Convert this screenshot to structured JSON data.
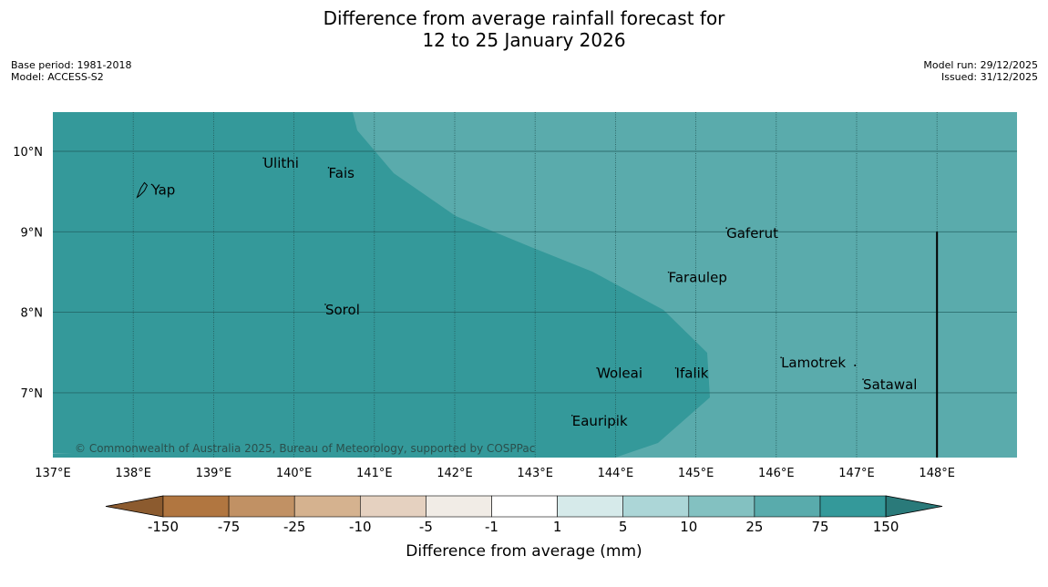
{
  "title": {
    "line1": "Difference from average rainfall forecast for",
    "line2": "12 to 25 January 2026"
  },
  "meta_left": {
    "base_period": "Base period: 1981-2018",
    "model": "Model: ACCESS-S2"
  },
  "meta_right": {
    "model_run": "Model run: 29/12/2025",
    "issued": "Issued: 31/12/2025"
  },
  "map": {
    "lon_range": [
      137,
      149
    ],
    "lat_range": [
      6.2,
      10.5
    ],
    "lon_ticks": [
      "137°E",
      "138°E",
      "139°E",
      "140°E",
      "141°E",
      "142°E",
      "143°E",
      "144°E",
      "145°E",
      "146°E",
      "147°E",
      "148°E"
    ],
    "lat_ticks": [
      "10°N",
      "9°N",
      "8°N",
      "7°N"
    ],
    "places": [
      {
        "name": "Yap",
        "lon": 138.23,
        "lat": 9.52
      },
      {
        "name": "Ulithi",
        "lon": 139.62,
        "lat": 9.85
      },
      {
        "name": "Fais",
        "lon": 140.43,
        "lat": 9.73
      },
      {
        "name": "Gaferut",
        "lon": 145.38,
        "lat": 8.98
      },
      {
        "name": "Faraulep",
        "lon": 144.66,
        "lat": 8.43
      },
      {
        "name": "Sorol",
        "lon": 140.39,
        "lat": 8.03
      },
      {
        "name": "Lamotrek",
        "lon": 146.06,
        "lat": 7.37
      },
      {
        "name": "Woleai",
        "lon": 143.77,
        "lat": 7.24
      },
      {
        "name": "Ifalik",
        "lon": 144.75,
        "lat": 7.24
      },
      {
        "name": "Satawal",
        "lon": 147.08,
        "lat": 7.1
      },
      {
        "name": "Eauripik",
        "lon": 143.46,
        "lat": 6.65
      }
    ],
    "copyright": "© Commonwealth of Australia 2025, Bureau of Meteorology, supported by COSPPac",
    "colors": {
      "darker_teal": "#34999a",
      "lighter_teal": "#5aabac"
    }
  },
  "colorbar": {
    "title": "Difference from average (mm)",
    "tick_labels": [
      "-150",
      "-75",
      "-25",
      "-10",
      "-5",
      "-1",
      "1",
      "5",
      "10",
      "25",
      "75",
      "150"
    ],
    "colors": [
      "#b17640",
      "#c19164",
      "#d5b28f",
      "#e5d1c0",
      "#f1ece6",
      "#ffffff",
      "#d6eaea",
      "#acd6d7",
      "#83c1c1",
      "#59abac",
      "#34999a"
    ],
    "extend_low_color": "#8c5b2f",
    "extend_high_color": "#2a7a7a"
  }
}
